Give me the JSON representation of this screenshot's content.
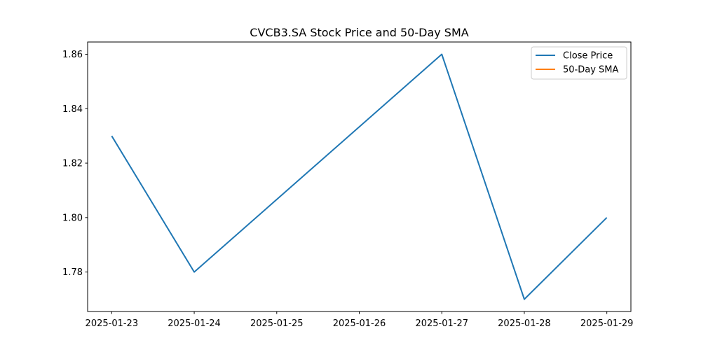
{
  "chart_data": {
    "type": "line",
    "title": "CVCB3.SA Stock Price and 50-Day SMA",
    "xlabel": "",
    "ylabel": "",
    "x": [
      "2025-01-23",
      "2025-01-24",
      "2025-01-25",
      "2025-01-26",
      "2025-01-27",
      "2025-01-28",
      "2025-01-29"
    ],
    "x_ticks": [
      "2025-01-23",
      "2025-01-24",
      "2025-01-25",
      "2025-01-26",
      "2025-01-27",
      "2025-01-28",
      "2025-01-29"
    ],
    "y_ticks": [
      "1.78",
      "1.80",
      "1.82",
      "1.84",
      "1.86"
    ],
    "xlim": [
      "2025-01-22T17:00",
      "2025-01-29T07:00"
    ],
    "ylim": [
      1.7655,
      1.8645
    ],
    "grid": false,
    "legend_position": "top-right",
    "series": [
      {
        "name": "Close Price",
        "color": "#1f77b4",
        "points": [
          {
            "x": "2025-01-23",
            "y": 1.83
          },
          {
            "x": "2025-01-24",
            "y": 1.78
          },
          {
            "x": "2025-01-27",
            "y": 1.86
          },
          {
            "x": "2025-01-28",
            "y": 1.77
          },
          {
            "x": "2025-01-29",
            "y": 1.8
          }
        ]
      },
      {
        "name": "50-Day SMA",
        "color": "#ff7f0e",
        "points": []
      }
    ]
  }
}
